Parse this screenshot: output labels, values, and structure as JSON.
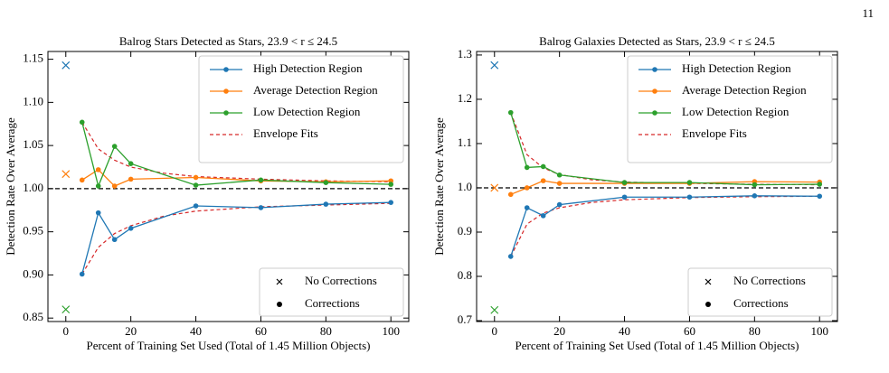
{
  "page_number": "11",
  "chart_data": [
    {
      "type": "line",
      "title": "Balrog Stars Detected as Stars, 23.9 < r ≤ 24.5",
      "x_label": "Percent of Training Set Used (Total of 1.45 Million Objects)",
      "y_label": "Detection Rate Over Average",
      "x": [
        5,
        10,
        15,
        20,
        40,
        60,
        80,
        100
      ],
      "series": [
        {
          "name": "High Detection Region",
          "color": "#1f77b4",
          "values": [
            0.901,
            0.972,
            0.941,
            0.954,
            0.98,
            0.978,
            0.982,
            0.984
          ],
          "uncorrected": 1.143
        },
        {
          "name": "Average Detection Region",
          "color": "#ff7f0e",
          "values": [
            1.01,
            1.022,
            1.003,
            1.011,
            1.013,
            1.009,
            1.008,
            1.009
          ],
          "uncorrected": 1.017
        },
        {
          "name": "Low Detection Region",
          "color": "#2ca02c",
          "values": [
            1.077,
            1.003,
            1.049,
            1.029,
            1.004,
            1.01,
            1.007,
            1.005
          ],
          "uncorrected": 0.86
        }
      ],
      "envelope": {
        "name": "Envelope Fits",
        "color": "#d62728",
        "x": [
          5,
          10,
          15,
          20,
          30,
          40,
          60,
          80,
          100
        ],
        "upper": [
          1.077,
          1.046,
          1.033,
          1.025,
          1.018,
          1.014,
          1.011,
          1.009,
          1.008
        ],
        "lower": [
          0.901,
          0.932,
          0.948,
          0.957,
          0.968,
          0.974,
          0.979,
          0.981,
          0.983
        ]
      },
      "marker_legend": [
        "No Corrections",
        "Corrections"
      ],
      "hline": 1,
      "xlim": [
        -5.5,
        105.5
      ],
      "xticks": [
        0,
        20,
        40,
        60,
        80,
        100
      ],
      "ylim": [
        0.846,
        1.159
      ],
      "yticks": [
        {
          "value": 0.85,
          "label": "0.85"
        },
        {
          "value": 0.9,
          "label": "0.90"
        },
        {
          "value": 0.95,
          "label": "0.95"
        },
        {
          "value": 1,
          "label": "1.00"
        },
        {
          "value": 1.05,
          "label": "1.05"
        },
        {
          "value": 1.1,
          "label": "1.10"
        },
        {
          "value": 1.15,
          "label": "1.15"
        }
      ]
    },
    {
      "type": "line",
      "title": "Balrog Galaxies Detected as Stars, 23.9 < r ≤ 24.5",
      "x_label": "Percent of Training Set Used (Total of 1.45 Million Objects)",
      "y_label": "Detection Rate Over Average",
      "x": [
        5,
        10,
        15,
        20,
        40,
        60,
        80,
        100
      ],
      "series": [
        {
          "name": "High Detection Region",
          "color": "#1f77b4",
          "values": [
            0.845,
            0.955,
            0.937,
            0.962,
            0.979,
            0.979,
            0.982,
            0.981
          ],
          "uncorrected": 1.277
        },
        {
          "name": "Average Detection Region",
          "color": "#ff7f0e",
          "values": [
            0.985,
            1.0,
            1.016,
            1.01,
            1.01,
            1.01,
            1.014,
            1.013
          ],
          "uncorrected": 1.0
        },
        {
          "name": "Low Detection Region",
          "color": "#2ca02c",
          "values": [
            1.17,
            1.046,
            1.048,
            1.029,
            1.012,
            1.012,
            1.007,
            1.008
          ],
          "uncorrected": 0.724
        }
      ],
      "envelope": {
        "name": "Envelope Fits",
        "color": "#d62728",
        "x": [
          5,
          10,
          15,
          20,
          30,
          40,
          60,
          80,
          100
        ],
        "upper": [
          1.17,
          1.075,
          1.045,
          1.03,
          1.018,
          1.013,
          1.01,
          1.008,
          1.007
        ],
        "lower": [
          0.845,
          0.918,
          0.943,
          0.955,
          0.967,
          0.973,
          0.978,
          0.98,
          0.981
        ]
      },
      "marker_legend": [
        "No Corrections",
        "Corrections"
      ],
      "hline": 1,
      "xlim": [
        -5.5,
        105.5
      ],
      "xticks": [
        0,
        20,
        40,
        60,
        80,
        100
      ],
      "ylim": [
        0.698,
        1.308
      ],
      "yticks": [
        0.7,
        0.8,
        0.9,
        {
          "value": 1,
          "label": "1.0"
        },
        1.1,
        1.2,
        1.3
      ]
    }
  ]
}
